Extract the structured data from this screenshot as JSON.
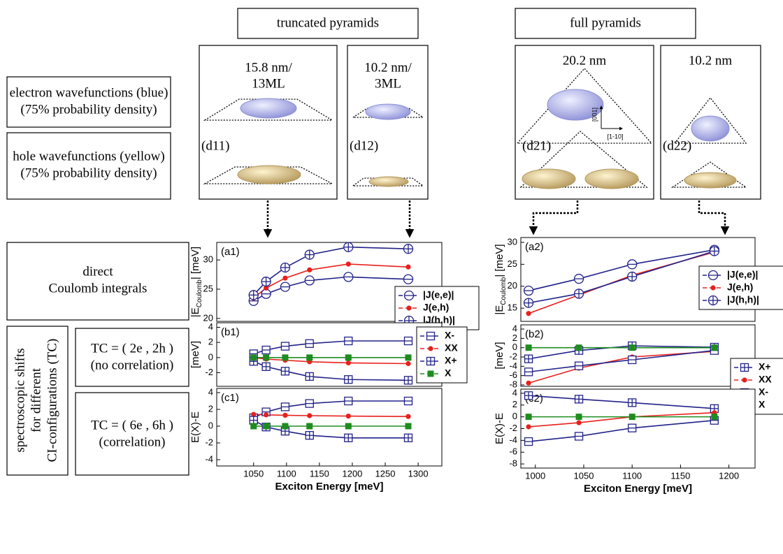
{
  "labels": {
    "column_headers": [
      "truncated pyramids",
      "full pyramids"
    ],
    "structures": [
      {
        "size": [
          "15.8 nm/",
          "13ML"
        ],
        "tag": "(d11)"
      },
      {
        "size": [
          "10.2 nm/",
          "3ML"
        ],
        "tag": "(d12)"
      },
      {
        "size": [
          "20.2 nm"
        ],
        "tag": "(d21)"
      },
      {
        "size": [
          "10.2 nm"
        ],
        "tag": "(d22)"
      }
    ],
    "inset_axes": [
      "[001]",
      "[1-10]"
    ],
    "rows": {
      "electron": [
        "electron wavefunctions (blue)",
        "(75% probability density)"
      ],
      "hole": [
        "hole wavefunctions (yellow)",
        "(75% probability density)"
      ],
      "coulomb": [
        "direct",
        "Coulomb integrals"
      ],
      "shifts": [
        "spectroscopic shifts",
        "for different",
        "CI-configurations (TC)"
      ],
      "tc2": [
        "TC = ( 2e , 2h )",
        "(no correlation)"
      ],
      "tc6": [
        "TC = ( 6e , 6h )",
        "(correlation)"
      ]
    }
  },
  "chart_data": [
    {
      "type": "line",
      "panel_label": "(a1)",
      "y_label": [
        "|E",
        "Coulomb",
        "| [meV]"
      ],
      "x": [
        1050,
        1069,
        1098,
        1135,
        1194,
        1285
      ],
      "xlim": [
        994,
        1336
      ],
      "ylim": [
        19.5,
        33
      ],
      "yticks": [
        20,
        25,
        30
      ],
      "legend": true,
      "series": [
        {
          "name": "|J(e,e)|",
          "color": "#22228a",
          "marker": "circle-minus",
          "values": [
            23.0,
            24.2,
            25.4,
            26.5,
            27.1,
            26.7
          ]
        },
        {
          "name": "J(e,h)",
          "color": "#e8201c",
          "marker": "dot",
          "values": [
            23.5,
            25.2,
            26.9,
            28.3,
            29.3,
            28.8
          ]
        },
        {
          "name": "|J(h,h)|",
          "color": "#22228a",
          "marker": "circle-plus",
          "values": [
            24.0,
            26.3,
            28.7,
            30.9,
            32.2,
            31.9
          ]
        }
      ]
    },
    {
      "type": "line",
      "panel_label": "(b1)",
      "y_label": [
        "[meV]"
      ],
      "x": [
        1050,
        1069,
        1098,
        1135,
        1194,
        1285
      ],
      "xlim": [
        994,
        1336
      ],
      "ylim": [
        -3.8,
        4.6
      ],
      "yticks": [
        -2,
        0,
        2,
        4
      ],
      "legend": true,
      "series": [
        {
          "name": "X-",
          "color": "#22228a",
          "marker": "square-minus",
          "values": [
            0.5,
            1.0,
            1.5,
            1.85,
            2.2,
            2.2
          ]
        },
        {
          "name": "XX",
          "color": "#e8201c",
          "marker": "dot",
          "values": [
            0.0,
            -0.2,
            -0.35,
            -0.55,
            -0.7,
            -0.8
          ]
        },
        {
          "name": "X+",
          "color": "#22228a",
          "marker": "square-plus",
          "values": [
            -0.5,
            -1.2,
            -1.8,
            -2.5,
            -2.9,
            -3.0
          ]
        },
        {
          "name": "X",
          "color": "#1e8c1e",
          "marker": "square",
          "values": [
            0,
            0,
            0,
            0,
            0,
            0
          ]
        }
      ]
    },
    {
      "type": "line",
      "panel_label": "(c1)",
      "y_label": [
        "E(X)-E"
      ],
      "x_label": "Exciton Energy [meV]",
      "x": [
        1050,
        1069,
        1098,
        1135,
        1194,
        1285
      ],
      "xlim": [
        994,
        1336
      ],
      "xticks": [
        1050,
        1100,
        1150,
        1200,
        1250,
        1300
      ],
      "ylim": [
        -4.75,
        4.5
      ],
      "yticks": [
        -4,
        -2,
        0,
        2,
        4
      ],
      "legend": false,
      "series": [
        {
          "name": "X-",
          "color": "#22228a",
          "marker": "square-minus",
          "values": [
            1.0,
            1.7,
            2.3,
            2.7,
            3.0,
            3.0
          ]
        },
        {
          "name": "XX",
          "color": "#e8201c",
          "marker": "dot",
          "values": [
            1.4,
            1.35,
            1.3,
            1.25,
            1.2,
            1.15
          ]
        },
        {
          "name": "X+",
          "color": "#22228a",
          "marker": "square-plus",
          "values": [
            0.7,
            -0.1,
            -0.6,
            -1.1,
            -1.4,
            -1.4
          ]
        },
        {
          "name": "X",
          "color": "#1e8c1e",
          "marker": "square",
          "values": [
            0,
            0,
            0,
            0,
            0,
            0
          ]
        }
      ]
    },
    {
      "type": "line",
      "panel_label": "(a2)",
      "y_label": [
        "|E",
        "Coulomb",
        "| [meV]"
      ],
      "x": [
        993,
        1045,
        1100,
        1185
      ],
      "xlim": [
        985,
        1227
      ],
      "ylim": [
        12,
        31.1
      ],
      "yticks": [
        15,
        20,
        25,
        30
      ],
      "legend": true,
      "series": [
        {
          "name": "|J(e,e)|",
          "color": "#22228a",
          "marker": "circle-minus",
          "values": [
            19.0,
            21.7,
            25.0,
            28.3
          ]
        },
        {
          "name": "J(e,h)",
          "color": "#e8201c",
          "marker": "dot",
          "values": [
            13.8,
            18.0,
            22.5,
            27.8
          ]
        },
        {
          "name": "|J(h,h)|",
          "color": "#22228a",
          "marker": "circle-plus",
          "values": [
            16.2,
            18.3,
            22.2,
            28.0
          ]
        }
      ]
    },
    {
      "type": "line",
      "panel_label": "(b2)",
      "y_label": [
        "[meV]"
      ],
      "x": [
        993,
        1045,
        1100,
        1185
      ],
      "xlim": [
        985,
        1227
      ],
      "ylim": [
        -8.3,
        4.9
      ],
      "yticks": [
        -8,
        -6,
        -4,
        -2,
        0,
        2,
        4
      ],
      "legend": true,
      "series": [
        {
          "name": "X+",
          "color": "#22228a",
          "marker": "square-plus",
          "values": [
            -2.4,
            -0.6,
            0.4,
            0.1
          ]
        },
        {
          "name": "XX",
          "color": "#e8201c",
          "marker": "dot",
          "values": [
            -7.6,
            -4.4,
            -2.0,
            -0.8
          ]
        },
        {
          "name": "X-",
          "color": "#22228a",
          "marker": "square-minus",
          "values": [
            -5.2,
            -3.9,
            -2.6,
            -0.6
          ]
        },
        {
          "name": "X",
          "color": "#1e8c1e",
          "marker": "square",
          "values": [
            0,
            0,
            0,
            0
          ]
        }
      ]
    },
    {
      "type": "line",
      "panel_label": "(c2)",
      "y_label": [
        "E(X)-E"
      ],
      "x_label": "Exciton Energy [meV]",
      "x": [
        993,
        1045,
        1100,
        1185
      ],
      "xlim": [
        985,
        1227
      ],
      "xticks": [
        1000,
        1050,
        1100,
        1150,
        1200
      ],
      "ylim": [
        -8.7,
        4.7
      ],
      "yticks": [
        -8,
        -6,
        -4,
        -2,
        0,
        2,
        4
      ],
      "legend": false,
      "series": [
        {
          "name": "X+",
          "color": "#22228a",
          "marker": "square-plus",
          "values": [
            3.6,
            3.0,
            2.4,
            1.4
          ]
        },
        {
          "name": "XX",
          "color": "#e8201c",
          "marker": "dot",
          "values": [
            -1.7,
            -1.0,
            0.0,
            0.7
          ]
        },
        {
          "name": "X-",
          "color": "#22228a",
          "marker": "square-minus",
          "values": [
            -4.2,
            -3.3,
            -1.9,
            -0.6
          ]
        },
        {
          "name": "X",
          "color": "#1e8c1e",
          "marker": "square",
          "values": [
            0,
            0,
            0,
            0
          ]
        }
      ]
    }
  ]
}
